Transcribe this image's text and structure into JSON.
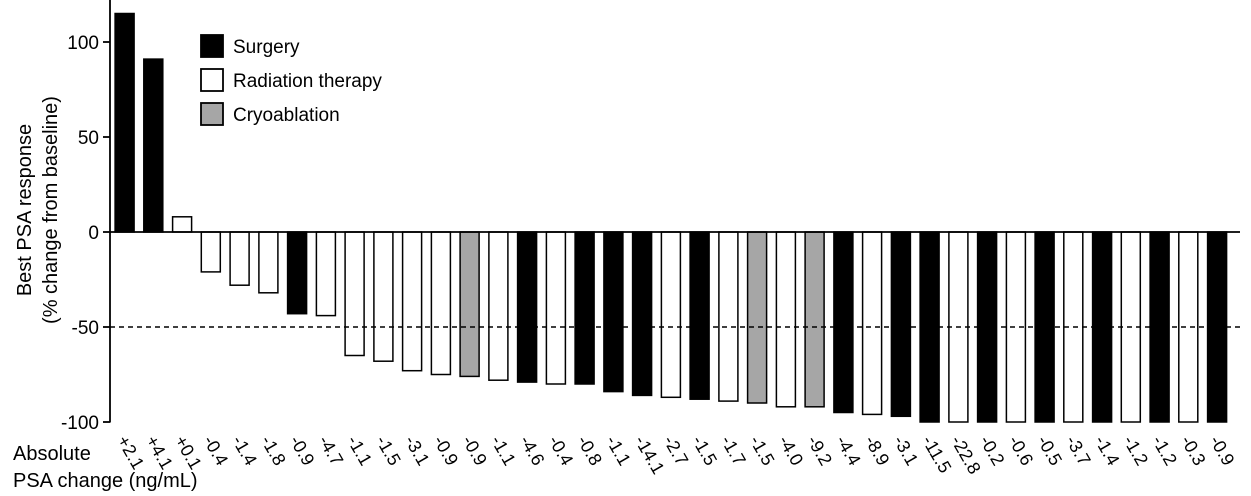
{
  "chart_data": {
    "type": "bar",
    "ylabel": [
      "Best PSA response",
      "(% change from baseline)"
    ],
    "xlabel": [
      "Absolute",
      "PSA change (ng/mL)"
    ],
    "ylim": [
      -100,
      115
    ],
    "yticks": [
      100,
      50,
      0,
      -50,
      -100
    ],
    "reference_line": {
      "y": -50,
      "style": "dashed"
    },
    "legend": {
      "placement": "top-left",
      "entries": [
        {
          "label": "Surgery",
          "group": "surgery"
        },
        {
          "label": "Radiation therapy",
          "group": "radiation"
        },
        {
          "label": "Cryoablation",
          "group": "cryo"
        }
      ]
    },
    "colors": {
      "surgery": "#000000",
      "radiation": "#ffffff",
      "cryo": "#a6a6a6"
    },
    "categories": [
      "+2.1",
      "+4.1",
      "+0.1",
      "-0.4",
      "-1.4",
      "-1.8",
      "-0.9",
      "-4.7",
      "-1.1",
      "-1.5",
      "-3.1",
      "-0.9",
      "-0.9",
      "-1.1",
      "-4.6",
      "-0.4",
      "-0.8",
      "-1.1",
      "-14.1",
      "-2.7",
      "-1.5",
      "-1.7",
      "-1.5",
      "-4.0",
      "-9.2",
      "-4.4",
      "-8.9",
      "-3.1",
      "-11.5",
      "-22.8",
      "-0.2",
      "-0.6",
      "-0.5",
      "-3.7",
      "-1.4",
      "-1.2",
      "-1.2",
      "-0.3",
      "-0.9"
    ],
    "values": [
      115,
      91,
      8,
      -21,
      -28,
      -32,
      -43,
      -44,
      -65,
      -68,
      -73,
      -75,
      -76,
      -78,
      -79,
      -80,
      -80,
      -84,
      -86,
      -87,
      -88,
      -89,
      -90,
      -92,
      -92,
      -95,
      -96,
      -97,
      -100,
      -100,
      -100,
      -100,
      -100,
      -100,
      -100,
      -100,
      -100,
      -100,
      -100
    ],
    "groups": [
      "surgery",
      "surgery",
      "radiation",
      "radiation",
      "radiation",
      "radiation",
      "surgery",
      "radiation",
      "radiation",
      "radiation",
      "radiation",
      "radiation",
      "cryo",
      "radiation",
      "surgery",
      "radiation",
      "surgery",
      "surgery",
      "surgery",
      "radiation",
      "surgery",
      "radiation",
      "cryo",
      "radiation",
      "cryo",
      "surgery",
      "radiation",
      "surgery",
      "surgery",
      "radiation",
      "surgery",
      "radiation",
      "surgery",
      "radiation",
      "surgery",
      "radiation",
      "surgery",
      "radiation",
      "surgery"
    ]
  }
}
